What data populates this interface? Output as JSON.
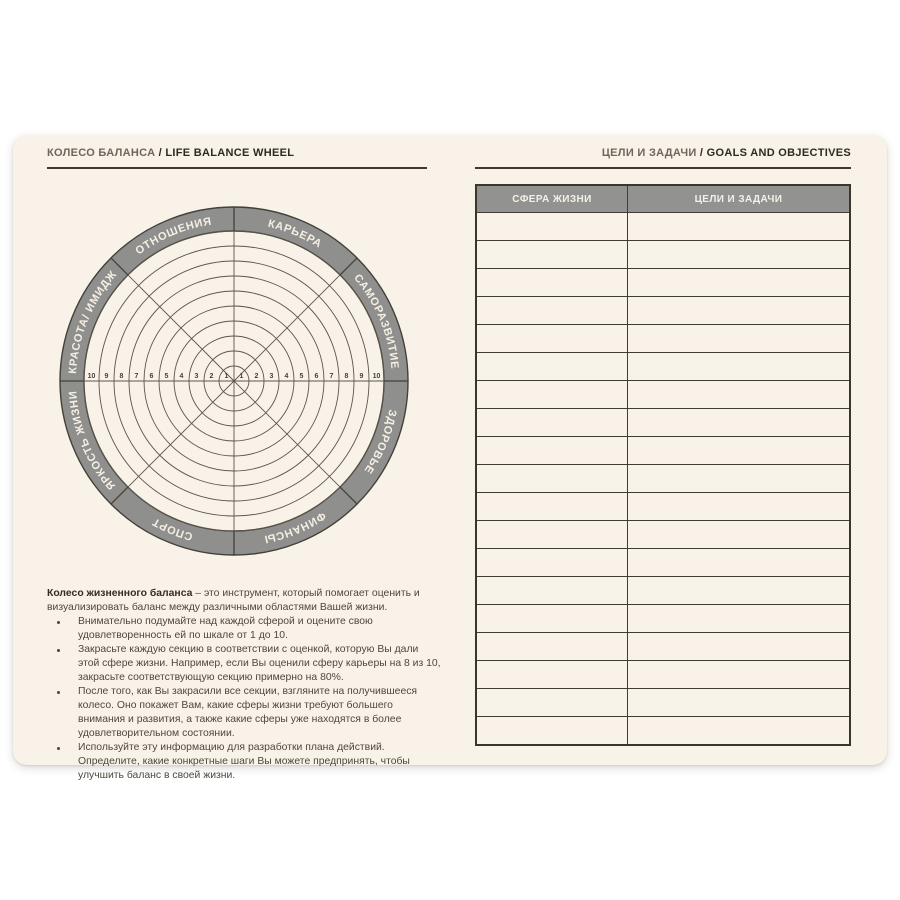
{
  "left_header": {
    "title_ru": "КОЛЕСО БАЛАНСА",
    "separator": " / ",
    "title_en": "LIFE BALANCE WHEEL"
  },
  "right_header": {
    "title_ru": "ЦЕЛИ И ЗАДАЧИ",
    "separator": " / ",
    "title_en": "GOALS AND OBJECTIVES"
  },
  "wheel": {
    "sectors": [
      "КАРЬЕРА",
      "САМОРАЗВИТИЕ",
      "ЗДОРОВЬЕ",
      "ФИНАНСЫ",
      "СПОРТ",
      "ЯРКОСТЬ ЖИЗНИ",
      "КРАСОТА/ ИМИДЖ",
      "ОТНОШЕНИЯ"
    ],
    "scale": [
      "1",
      "2",
      "3",
      "4",
      "5",
      "6",
      "7",
      "8",
      "9",
      "10"
    ],
    "rings": 10
  },
  "instructions": {
    "lead": "Колесо жизненного баланса",
    "intro": " – это инструмент, который помогает оценить и визуализировать баланс между различными областями Вашей жизни.",
    "bullets": [
      "Внимательно подумайте над каждой сферой и оцените свою удовлетворенность ей по шкале от 1 до 10.",
      "Закрасьте каждую секцию в соответствии с оценкой, которую Вы дали этой сфере жизни. Например, если Вы оценили сферу карьеры на 8 из 10, закрасьте соответствующую секцию примерно на 80%.",
      "После того, как Вы закрасили все секции, взгляните на получившееся колесо. Оно покажет Вам, какие сферы жизни требуют большего внимания и развития, а также какие сферы уже находятся в более удовлетворительном состоянии.",
      "Используйте эту информацию для разработки плана действий. Определите, какие конкретные шаги Вы можете предпринять, чтобы улучшить баланс в своей жизни."
    ]
  },
  "table": {
    "columns": [
      "СФЕРА ЖИЗНИ",
      "ЦЕЛИ И ЗАДАЧИ"
    ],
    "empty_row_count": 19
  },
  "colors": {
    "page_background": "#ffffff",
    "card_background": "#f8f2e8",
    "ring_gray": "#8f8f8d",
    "table_header_gray": "#929290",
    "line_dark": "#403b33",
    "text_dark": "#2f2a21",
    "text_muted": "#6e665b"
  }
}
